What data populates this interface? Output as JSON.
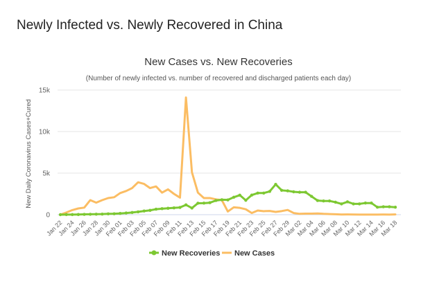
{
  "page": {
    "heading": "Newly Infected vs. Newly Recovered in China"
  },
  "chart_data": {
    "type": "line",
    "title": "New Cases vs. New Recoveries",
    "subtitle": "(Number of newly infected vs. number of recovered and discharged patients each day)",
    "xlabel": "",
    "ylabel": "New Daily Coronavirus Cases+Cured",
    "ylim": [
      0,
      15000
    ],
    "y_ticks": [
      0,
      5000,
      10000,
      15000
    ],
    "y_tick_labels": [
      "0",
      "5k",
      "10k",
      "15k"
    ],
    "grid": "horizontal",
    "legend_position": "bottom-center",
    "x": [
      "Jan 22",
      "Jan 23",
      "Jan 24",
      "Jan 25",
      "Jan 26",
      "Jan 27",
      "Jan 28",
      "Jan 29",
      "Jan 30",
      "Jan 31",
      "Feb 01",
      "Feb 02",
      "Feb 03",
      "Feb 04",
      "Feb 05",
      "Feb 06",
      "Feb 07",
      "Feb 08",
      "Feb 09",
      "Feb 10",
      "Feb 11",
      "Feb 12",
      "Feb 13",
      "Feb 14",
      "Feb 15",
      "Feb 16",
      "Feb 17",
      "Feb 18",
      "Feb 19",
      "Feb 20",
      "Feb 21",
      "Feb 22",
      "Feb 23",
      "Feb 24",
      "Feb 25",
      "Feb 26",
      "Feb 27",
      "Feb 28",
      "Feb 29",
      "Mar 01",
      "Mar 02",
      "Mar 03",
      "Mar 04",
      "Mar 05",
      "Mar 06",
      "Mar 07",
      "Mar 08",
      "Mar 09",
      "Mar 10",
      "Mar 11",
      "Mar 12",
      "Mar 13",
      "Mar 14",
      "Mar 15",
      "Mar 16",
      "Mar 17",
      "Mar 18"
    ],
    "x_tick_labels": [
      "Jan 22",
      "Jan 24",
      "Jan 26",
      "Jan 28",
      "Jan 30",
      "Feb 01",
      "Feb 03",
      "Feb 05",
      "Feb 07",
      "Feb 09",
      "Feb 11",
      "Feb 13",
      "Feb 15",
      "Feb 17",
      "Feb 19",
      "Feb 21",
      "Feb 23",
      "Feb 25",
      "Feb 27",
      "Feb 29",
      "Mar 02",
      "Mar 04",
      "Mar 06",
      "Mar 08",
      "Mar 10",
      "Mar 12",
      "Mar 14",
      "Mar 16",
      "Mar 18"
    ],
    "series": [
      {
        "name": "New Recoveries",
        "color": "#7dc832",
        "marker": "circle",
        "values": [
          0,
          10,
          10,
          20,
          40,
          50,
          60,
          70,
          100,
          110,
          150,
          200,
          260,
          340,
          440,
          520,
          660,
          720,
          770,
          820,
          870,
          1180,
          800,
          1380,
          1390,
          1440,
          1700,
          1800,
          1780,
          2100,
          2350,
          1730,
          2360,
          2600,
          2600,
          2800,
          3650,
          2930,
          2870,
          2750,
          2700,
          2700,
          2200,
          1700,
          1650,
          1650,
          1500,
          1300,
          1550,
          1300,
          1300,
          1400,
          1400,
          900,
          950,
          950,
          900
        ]
      },
      {
        "name": "New Cases",
        "color": "#fbbd63",
        "marker": "none",
        "values": [
          0,
          260,
          550,
          750,
          850,
          1750,
          1450,
          1750,
          2000,
          2100,
          2600,
          2850,
          3200,
          3900,
          3700,
          3200,
          3400,
          2650,
          3050,
          2500,
          2050,
          14100,
          5100,
          2650,
          2000,
          2000,
          1850,
          1750,
          380,
          890,
          820,
          650,
          200,
          500,
          420,
          450,
          330,
          430,
          570,
          200,
          100,
          120,
          130,
          150,
          100,
          70,
          50,
          20,
          30,
          25,
          15,
          10,
          15,
          15,
          20,
          15,
          35
        ]
      }
    ]
  }
}
